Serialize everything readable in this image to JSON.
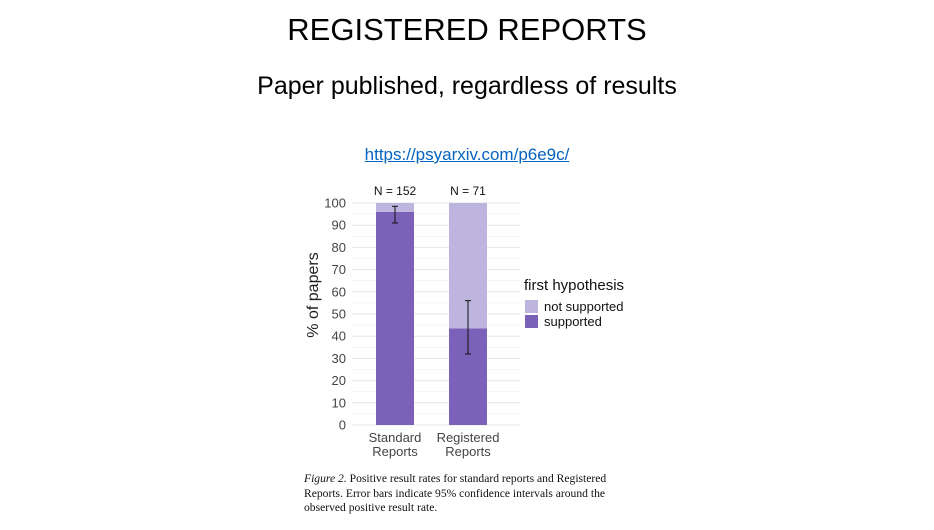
{
  "slide": {
    "title": "REGISTERED REPORTS",
    "subtitle": "Paper published, regardless of results",
    "link": "https://psyarxiv.com/p6e9c/"
  },
  "chart_data": {
    "type": "bar",
    "stacked": true,
    "categories": [
      "Standard Reports",
      "Registered Reports"
    ],
    "category_lines": [
      [
        "Standard",
        "Reports"
      ],
      [
        "Registered",
        "Reports"
      ]
    ],
    "annotations": [
      "N = 152",
      "N = 71"
    ],
    "series": [
      {
        "name": "supported",
        "values": [
          96,
          43.5
        ],
        "color": "#7B61B8"
      },
      {
        "name": "not supported",
        "values": [
          4,
          56.5
        ],
        "color": "#BDB5DE"
      }
    ],
    "error_bars": [
      {
        "low": 91,
        "high": 98.5
      },
      {
        "low": 32,
        "high": 56
      }
    ],
    "ylabel": "% of papers",
    "ylim": [
      0,
      100
    ],
    "yticks": [
      0,
      10,
      20,
      30,
      40,
      50,
      60,
      70,
      80,
      90,
      100
    ],
    "grid": true,
    "legend_title": "first hypothesis",
    "legend_order": [
      "not supported",
      "supported"
    ],
    "legend_placement": "right"
  },
  "caption": {
    "label": "Figure 2.",
    "text": " Positive result rates for standard reports and Registered Reports. Error bars indicate 95% confidence intervals around the observed positive result rate."
  }
}
